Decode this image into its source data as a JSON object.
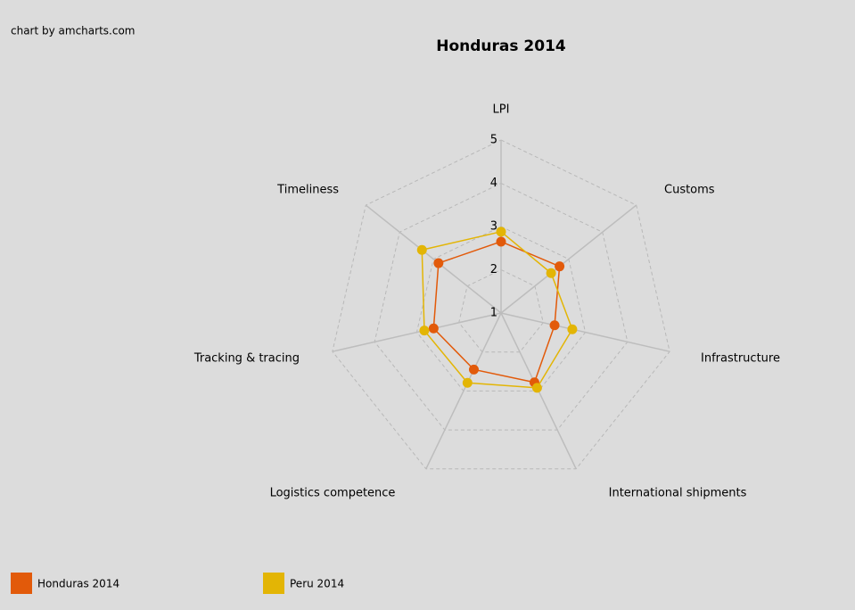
{
  "chart_data": {
    "type": "radar",
    "title": "Honduras 2014",
    "credit": "chart by amcharts.com",
    "categories": [
      "LPI",
      "Customs",
      "Infrastructure",
      "International shipments",
      "Logistics competence",
      "Tracking & tracing",
      "Timeliness"
    ],
    "series": [
      {
        "name": "Honduras 2014",
        "color": "#e25a0a",
        "values": [
          2.65,
          2.73,
          2.27,
          2.78,
          2.45,
          2.6,
          2.85
        ]
      },
      {
        "name": "Peru 2014",
        "color": "#e3b505",
        "values": [
          2.88,
          2.48,
          2.69,
          2.92,
          2.79,
          2.82,
          3.34
        ]
      }
    ],
    "ylim": [
      1,
      5
    ],
    "yticks": [
      1,
      2,
      3,
      4,
      5
    ],
    "grid": true,
    "legend": "bottom"
  }
}
